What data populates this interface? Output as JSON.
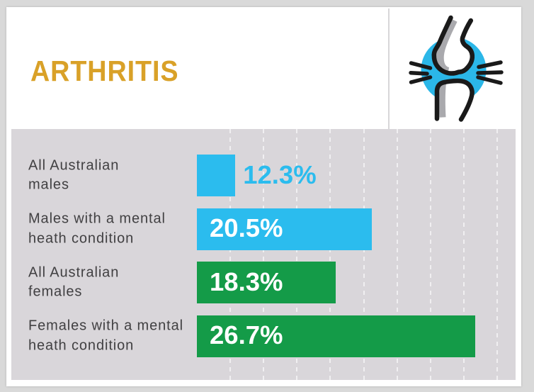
{
  "header": {
    "title": "ARTHRITIS",
    "title_color": "#D9A128",
    "icon": "knee-joint-pain-icon"
  },
  "chart_data": {
    "type": "bar",
    "orientation": "horizontal",
    "title": "ARTHRITIS",
    "categories": [
      "All Australian males",
      "Males with a mental heath condition",
      "All Australian females",
      "Females with a mental heath condition"
    ],
    "category_lines": [
      [
        "All Australian",
        "males"
      ],
      [
        "Males with a mental",
        "heath condition"
      ],
      [
        "All Australian",
        "females"
      ],
      [
        "Females with a mental",
        "heath condition"
      ]
    ],
    "values": [
      12.3,
      20.5,
      18.3,
      26.7
    ],
    "value_labels": [
      "12.3%",
      "20.5%",
      "18.3%",
      "26.7%"
    ],
    "bar_colors": [
      "#2BBCEE",
      "#2BBCEE",
      "#149B48",
      "#149B48"
    ],
    "value_label_style": [
      "outside",
      "inside",
      "inside",
      "inside"
    ],
    "xlim": [
      10,
      29.1
    ],
    "grid_ticks": [
      12,
      14,
      16,
      18,
      20,
      22,
      24,
      26,
      28
    ],
    "grid": "dashed-vertical",
    "legend": "none",
    "xlabel": "",
    "ylabel": ""
  },
  "colors": {
    "blue": "#2BBCEE",
    "green": "#149B48",
    "gold": "#D9A128",
    "panel_bg": "#D9D6DA",
    "page_bg": "#D9D9D9",
    "label_text": "#414042",
    "icon_black": "#1A1A1A",
    "icon_shadow_gray": "#A9A9AD"
  }
}
